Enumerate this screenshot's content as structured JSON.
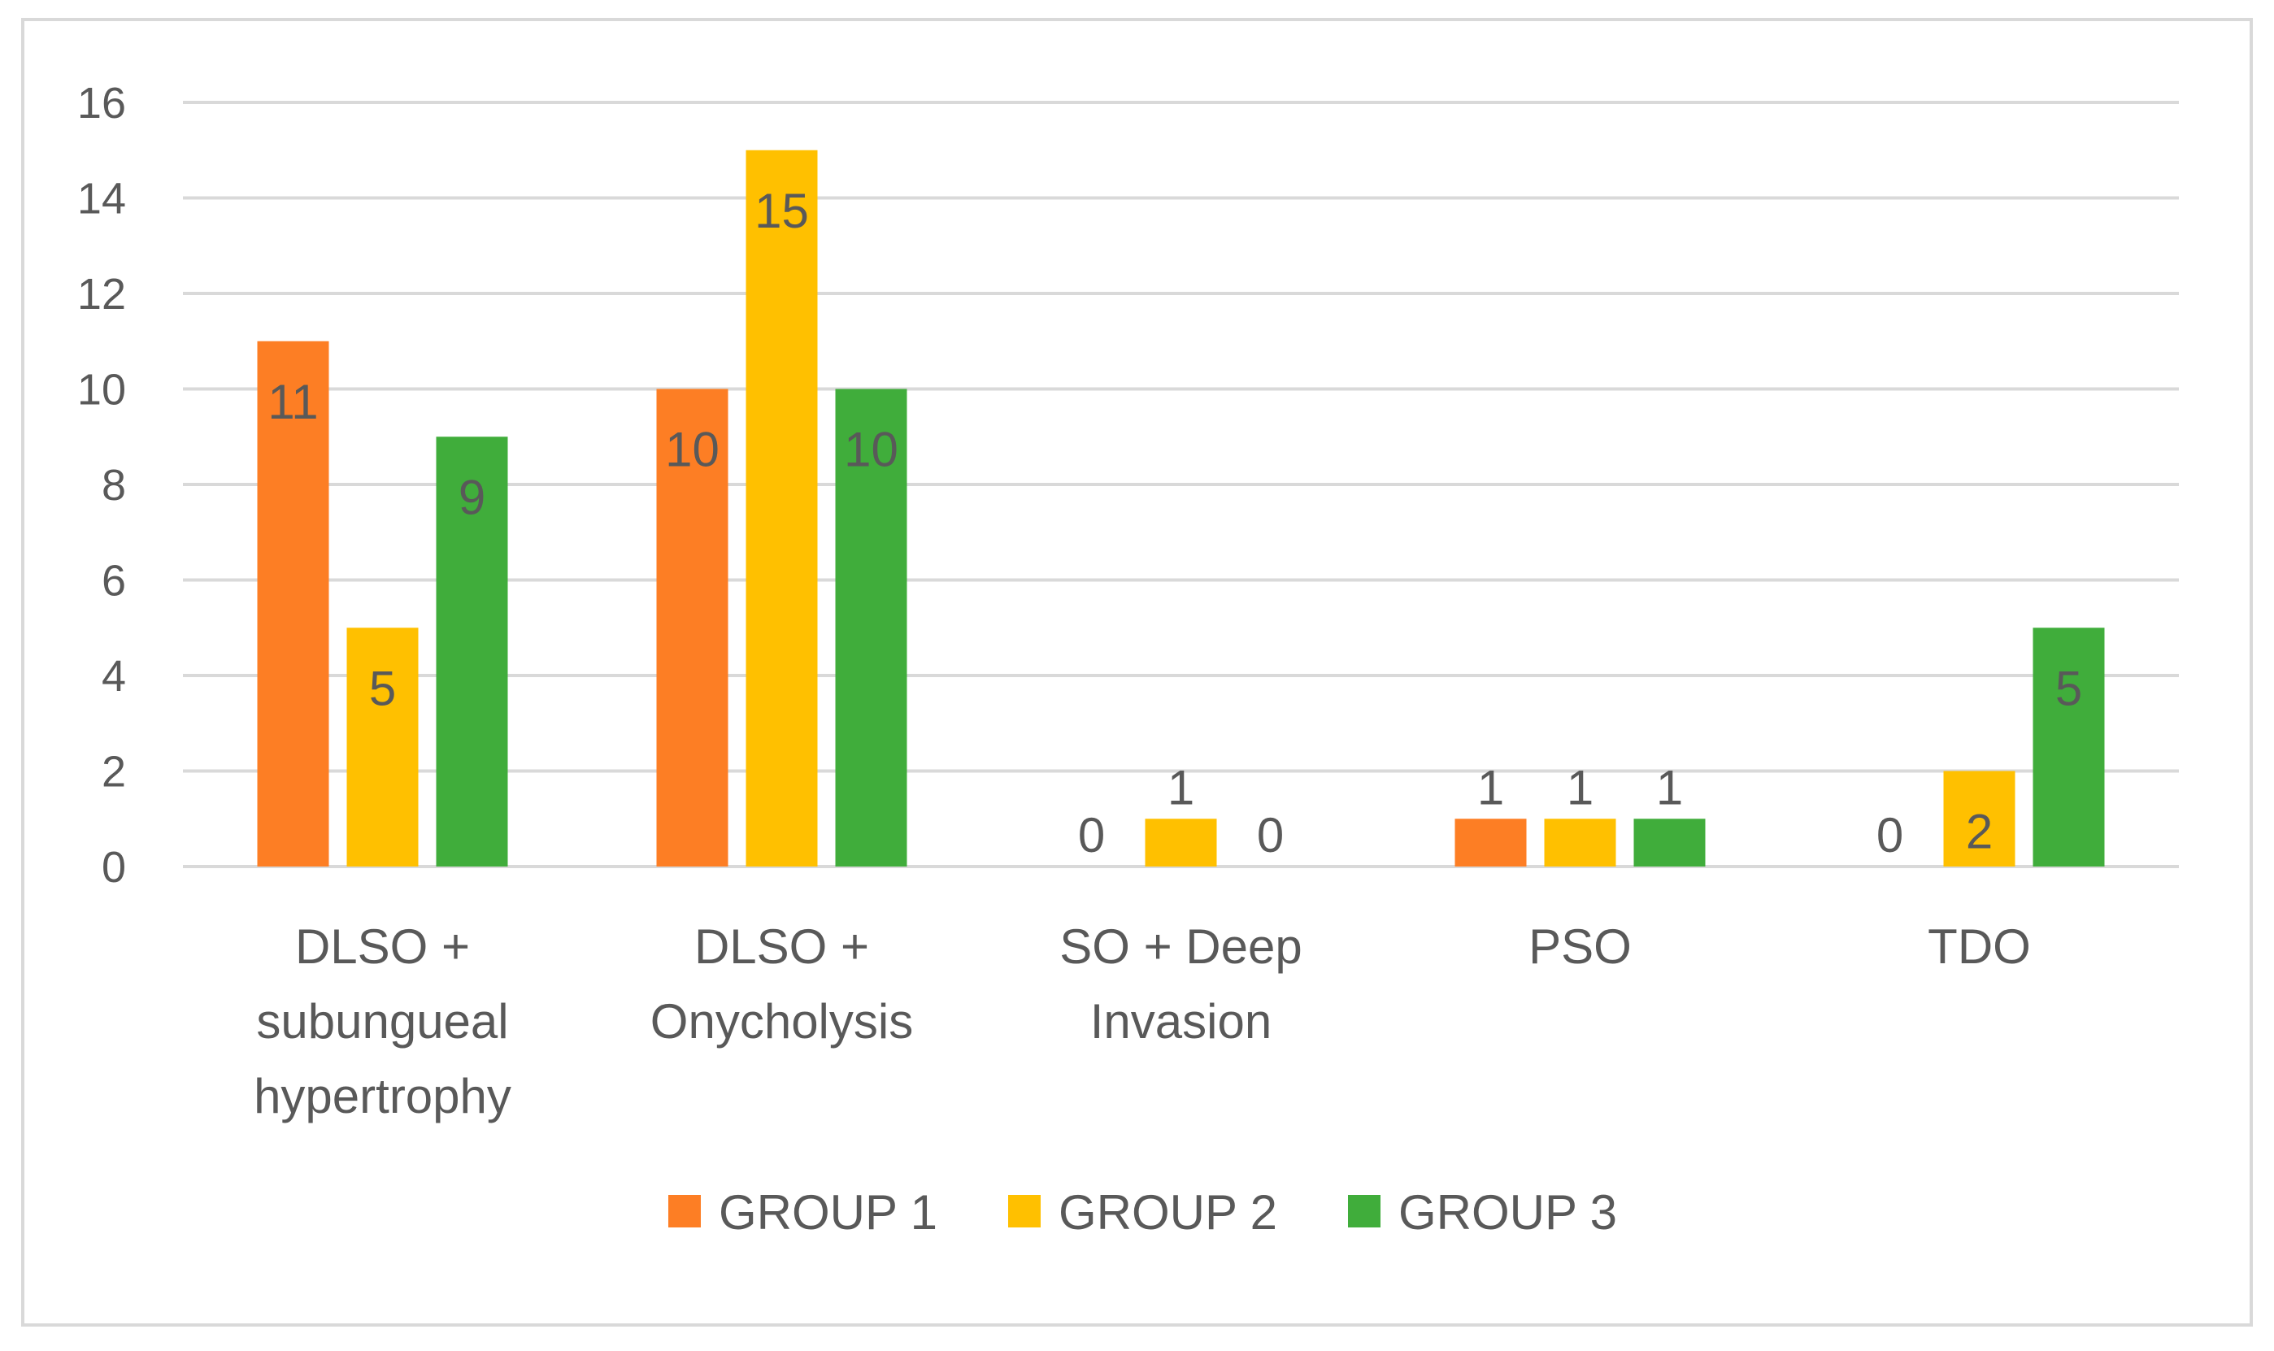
{
  "chart_data": {
    "type": "bar",
    "title": "",
    "xlabel": "",
    "ylabel": "",
    "ylim": [
      0,
      16
    ],
    "yticks": [
      0,
      2,
      4,
      6,
      8,
      10,
      12,
      14,
      16
    ],
    "grid": true,
    "legend_position": "bottom",
    "categories": [
      [
        "DLSO +",
        "subungueal",
        "hypertrophy"
      ],
      [
        "DLSO +",
        "Onycholysis"
      ],
      [
        "SO + Deep",
        "Invasion"
      ],
      [
        "PSO"
      ],
      [
        "TDO"
      ]
    ],
    "series": [
      {
        "name": "GROUP 1",
        "color": "#fd7e24",
        "values": [
          11,
          10,
          0,
          1,
          0
        ]
      },
      {
        "name": "GROUP 2",
        "color": "#ffc000",
        "values": [
          5,
          15,
          1,
          1,
          2
        ]
      },
      {
        "name": "GROUP 3",
        "color": "#40ad3b",
        "values": [
          9,
          10,
          0,
          1,
          5
        ]
      }
    ],
    "data_label_color": "#595959"
  }
}
